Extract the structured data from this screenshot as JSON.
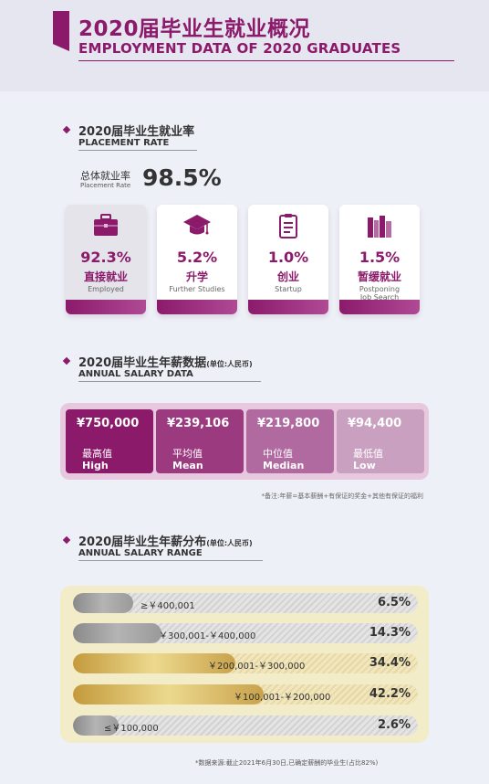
{
  "header": {
    "title_cn": "2020届毕业生就业概况",
    "title_en": "EMPLOYMENT DATA OF 2020 GRADUATES"
  },
  "placement": {
    "title_cn": "2020届毕业生就业率",
    "title_en": "PLACEMENT RATE",
    "overall_cn": "总体就业率",
    "overall_en": "Placement Rate",
    "overall_value": "98.5%",
    "cards": [
      {
        "value": "92.3%",
        "cn": "直接就业",
        "en": "Employed",
        "icon": "briefcase-icon"
      },
      {
        "value": "5.2%",
        "cn": "升学",
        "en": "Further Studies",
        "icon": "graduation-cap-icon"
      },
      {
        "value": "1.0%",
        "cn": "创业",
        "en": "Startup",
        "icon": "clipboard-icon"
      },
      {
        "value": "1.5%",
        "cn": "暂缓就业",
        "en": "Postponing\nJob Search",
        "icon": "books-icon"
      }
    ]
  },
  "salary": {
    "title_cn": "2020届毕业生年薪数据",
    "title_unit": "(单位:人民币)",
    "title_en": "ANNUAL SALARY DATA",
    "items": [
      {
        "value": "¥750,000",
        "cn": "最高值",
        "en": "High",
        "color": "#8b1a6b"
      },
      {
        "value": "¥239,106",
        "cn": "平均值",
        "en": "Mean",
        "color": "#9c3a80"
      },
      {
        "value": "¥219,800",
        "cn": "中位值",
        "en": "Median",
        "color": "#b06aa0"
      },
      {
        "value": "¥94,400",
        "cn": "最低值",
        "en": "Low",
        "color": "#c9a0c0"
      }
    ],
    "note": "*备注:年薪=基本薪酬+有保证的奖金+其他有保证的福利"
  },
  "range": {
    "title_cn": "2020届毕业生年薪分布",
    "title_unit": "(单位:人民币)",
    "title_en": "ANNUAL SALARY RANGE",
    "rows": [
      {
        "label": "≥￥400,001",
        "pct": "6.5%",
        "share": 0.065,
        "style": "silver"
      },
      {
        "label": "￥300,001-￥400,000",
        "pct": "14.3%",
        "share": 0.143,
        "style": "silver"
      },
      {
        "label": "￥200,001-￥300,000",
        "pct": "34.4%",
        "share": 0.344,
        "style": "gold"
      },
      {
        "label": "￥100,001-￥200,000",
        "pct": "42.2%",
        "share": 0.422,
        "style": "gold"
      },
      {
        "label": "≤￥100,000",
        "pct": "2.6%",
        "share": 0.026,
        "style": "silver"
      }
    ],
    "note": "*数据来源:截止2021年6月30日,已确定薪酬的毕业生(占比82%)"
  }
}
